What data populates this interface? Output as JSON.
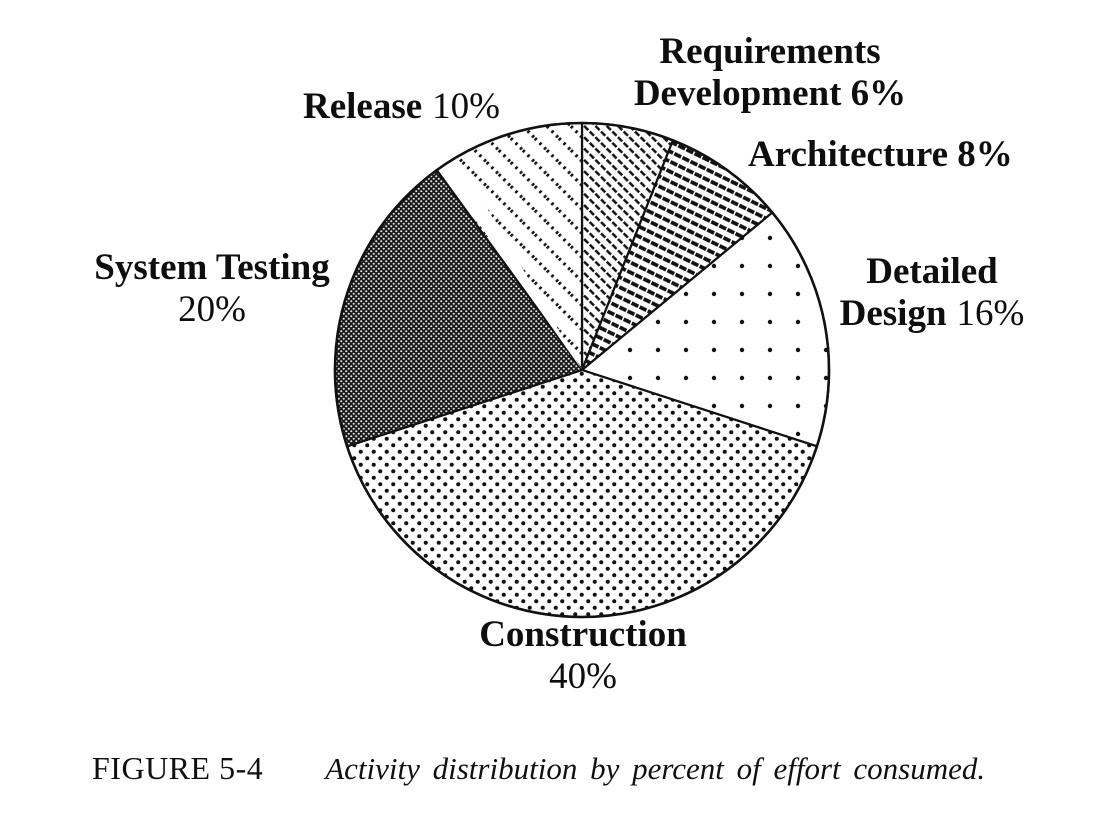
{
  "chart_data": {
    "type": "pie",
    "title": "Activity distribution by percent of effort consumed",
    "labels": [
      "Requirements Development",
      "Architecture",
      "Detailed Design",
      "Construction",
      "System Testing",
      "Release"
    ],
    "values": [
      6,
      8,
      16,
      40,
      20,
      10
    ],
    "unit": "%",
    "start_angle_deg": 0,
    "direction": "clockwise",
    "legend_position": "labels around pie",
    "patterns": [
      "fine-diagonal-hatch",
      "bold-diagonal-hatch",
      "sparse-dots",
      "dense-halftone-dots",
      "dark-weave",
      "dashed-diagonal-stripes"
    ]
  },
  "slice_labels": {
    "requirements": {
      "line1": "Requirements",
      "line2": "Development 6%"
    },
    "architecture": {
      "text": "Architecture 8%"
    },
    "detailed": {
      "line1": "Detailed",
      "line2_name": "Design",
      "line2_pct": "16%"
    },
    "system": {
      "name": "System Testing",
      "pct": "20%"
    },
    "construction": {
      "name": "Construction",
      "pct": "40%"
    },
    "release": {
      "name": "Release",
      "pct": "10%"
    }
  },
  "caption": {
    "label": "FIGURE 5-4",
    "text": "Activity distribution by percent of effort consumed."
  },
  "colors": {
    "ink": "#111111",
    "paper": "#ffffff",
    "weave_dark": "#191919"
  }
}
